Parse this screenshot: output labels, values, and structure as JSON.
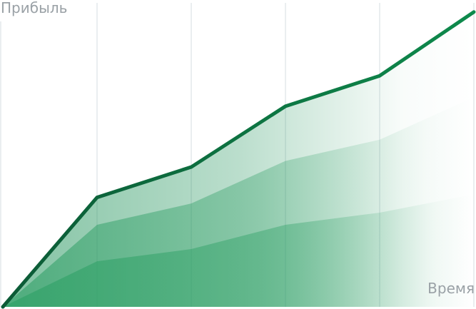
{
  "chart_data": {
    "type": "area",
    "title": "",
    "xlabel": "Время",
    "ylabel": "Прибыль",
    "grid": true,
    "x": [
      0,
      1,
      2,
      3,
      4,
      5
    ],
    "ylim": [
      0,
      100
    ],
    "xlim": [
      0,
      5
    ],
    "series": [
      {
        "values": [
          0,
          36,
          46,
          66,
          76,
          97
        ]
      },
      {
        "values": [
          0,
          27,
          34,
          48,
          55,
          69
        ]
      },
      {
        "values": [
          0,
          15,
          19,
          27,
          31,
          37
        ]
      }
    ],
    "colors": {
      "main_line": "#0a7a45",
      "fill_dark": "#1c9157",
      "grid": "#e3e8ec"
    }
  }
}
